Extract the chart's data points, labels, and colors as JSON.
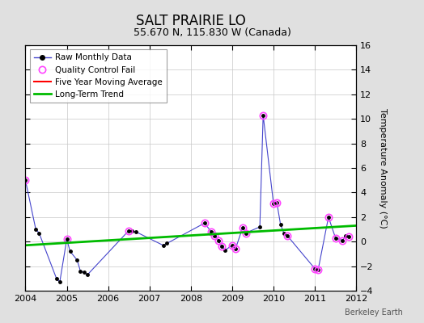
{
  "title": "SALT PRAIRIE LO",
  "subtitle": "55.670 N, 115.830 W (Canada)",
  "ylabel_right": "Temperature Anomaly (°C)",
  "watermark": "Berkeley Earth",
  "xlim": [
    2004,
    2012
  ],
  "ylim": [
    -4,
    16
  ],
  "yticks": [
    -4,
    -2,
    0,
    2,
    4,
    6,
    8,
    10,
    12,
    14,
    16
  ],
  "xticks": [
    2004,
    2005,
    2006,
    2007,
    2008,
    2009,
    2010,
    2011,
    2012
  ],
  "raw_x": [
    2004.0,
    2004.25,
    2004.33,
    2004.75,
    2004.83,
    2005.0,
    2005.08,
    2005.25,
    2005.33,
    2005.42,
    2005.5,
    2006.5,
    2006.58,
    2006.67,
    2007.33,
    2007.42,
    2008.33,
    2008.5,
    2008.58,
    2008.67,
    2008.75,
    2008.83,
    2009.0,
    2009.08,
    2009.25,
    2009.33,
    2009.67,
    2009.75,
    2010.0,
    2010.08,
    2010.17,
    2010.25,
    2010.33,
    2011.0,
    2011.08,
    2011.33,
    2011.5,
    2011.67,
    2011.75,
    2011.83
  ],
  "raw_y": [
    5.0,
    1.0,
    0.7,
    -3.0,
    -3.3,
    0.2,
    -0.8,
    -1.5,
    -2.4,
    -2.5,
    -2.7,
    0.9,
    0.85,
    0.8,
    -0.3,
    -0.15,
    1.5,
    0.8,
    0.5,
    0.1,
    -0.4,
    -0.7,
    -0.3,
    -0.6,
    1.1,
    0.7,
    1.2,
    10.3,
    3.1,
    3.2,
    1.4,
    0.7,
    0.5,
    -2.2,
    -2.3,
    2.0,
    0.3,
    0.1,
    0.5,
    0.4
  ],
  "qc_x": [
    2004.0,
    2005.0,
    2006.5,
    2008.33,
    2008.5,
    2008.58,
    2008.67,
    2008.75,
    2009.0,
    2009.08,
    2009.25,
    2009.33,
    2009.75,
    2010.0,
    2010.08,
    2010.33,
    2011.0,
    2011.08,
    2011.33,
    2011.5,
    2011.67,
    2011.83
  ],
  "qc_y": [
    5.0,
    0.2,
    0.9,
    1.5,
    0.8,
    0.5,
    0.1,
    -0.4,
    -0.3,
    -0.6,
    1.1,
    0.7,
    10.3,
    3.1,
    3.2,
    0.5,
    -2.2,
    -2.3,
    2.0,
    0.3,
    0.1,
    0.4
  ],
  "trend_x": [
    2004.0,
    2012.0
  ],
  "trend_y": [
    -0.3,
    1.3
  ],
  "background_color": "#e0e0e0",
  "plot_bg_color": "#ffffff",
  "raw_line_color": "#4444cc",
  "raw_marker_color": "#000000",
  "qc_color": "#ff44ff",
  "trend_color": "#00bb00",
  "five_yr_color": "#ff0000",
  "grid_color": "#c8c8c8"
}
